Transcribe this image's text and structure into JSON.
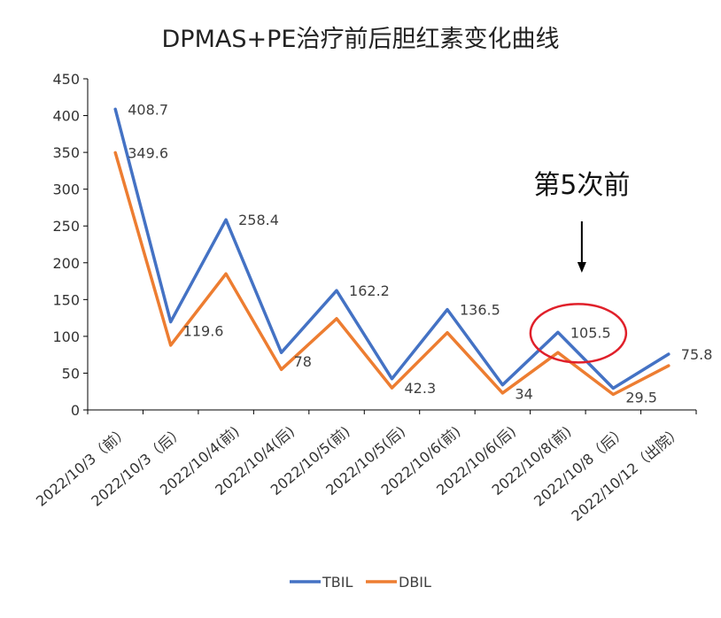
{
  "chart_data": {
    "type": "line",
    "title": "DPMAS+PE治疗前后胆红素变化曲线",
    "categories": [
      "2022/10/3（前）",
      "2022/10/3（后）",
      "2022/10/4(前)",
      "2022/10/4(后)",
      "2022/10/5(前)",
      "2022/10/5(后)",
      "2022/10/6(前)",
      "2022/10/6(后)",
      "2022/10/8(前)",
      "2022/10/8（后）",
      "2022/10/12（出院）"
    ],
    "ylim": [
      0,
      450
    ],
    "yticks": [
      "0",
      "50",
      "100",
      "150",
      "200",
      "250",
      "300",
      "350",
      "400",
      "450"
    ],
    "grid": false,
    "legend": "bottom",
    "series": [
      {
        "name": "TBIL",
        "color": "#4472C4",
        "values": [
          408.7,
          119.6,
          258.4,
          78,
          162.2,
          42.3,
          136.5,
          34,
          105.5,
          29.5,
          75.8
        ],
        "labels": [
          "408.7",
          "119.6",
          "258.4",
          "78",
          "162.2",
          "42.3",
          "136.5",
          "34",
          "105.5",
          "29.5",
          "75.8"
        ]
      },
      {
        "name": "DBIL",
        "color": "#ED7D31",
        "values": [
          349.6,
          88,
          185,
          55,
          124,
          30,
          105,
          23,
          78,
          21,
          60
        ],
        "labels": [
          "349.6",
          "",
          "",
          "",
          "",
          "",
          "",
          "",
          "",
          "",
          ""
        ]
      }
    ],
    "annotations": [
      {
        "text": "第5次前",
        "target_category": 8,
        "highlight_color": "#E0202A"
      }
    ]
  }
}
